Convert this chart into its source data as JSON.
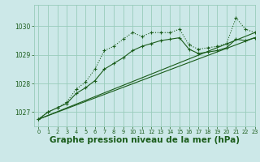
{
  "bg_color": "#cce8e8",
  "grid_color": "#99ccbb",
  "line_color": "#1a5c1a",
  "xlabel": "Graphe pression niveau de la mer (hPa)",
  "xlabel_fontsize": 7.5,
  "xlim": [
    -0.5,
    23
  ],
  "ylim": [
    1026.5,
    1030.75
  ],
  "yticks": [
    1027,
    1028,
    1029,
    1030
  ],
  "xticks": [
    0,
    1,
    2,
    3,
    4,
    5,
    6,
    7,
    8,
    9,
    10,
    11,
    12,
    13,
    14,
    15,
    16,
    17,
    18,
    19,
    20,
    21,
    22,
    23
  ],
  "line1_x": [
    0,
    1,
    2,
    3,
    4,
    5,
    6,
    7,
    8,
    9,
    10,
    11,
    12,
    13,
    14,
    15,
    16,
    17,
    18,
    19,
    20,
    21,
    22,
    23
  ],
  "line1_y": [
    1026.75,
    1027.0,
    1027.15,
    1027.35,
    1027.8,
    1028.05,
    1028.5,
    1029.15,
    1029.3,
    1029.55,
    1029.78,
    1029.65,
    1029.78,
    1029.78,
    1029.78,
    1029.9,
    1029.35,
    1029.2,
    1029.25,
    1029.3,
    1029.4,
    1030.3,
    1029.9,
    1029.78
  ],
  "line2_x": [
    0,
    1,
    2,
    3,
    4,
    5,
    6,
    7,
    8,
    9,
    10,
    11,
    12,
    13,
    14,
    15,
    16,
    17,
    18,
    19,
    20,
    21,
    22,
    23
  ],
  "line2_y": [
    1026.75,
    1027.0,
    1027.15,
    1027.3,
    1027.65,
    1027.85,
    1028.1,
    1028.5,
    1028.7,
    1028.9,
    1029.15,
    1029.3,
    1029.4,
    1029.5,
    1029.55,
    1029.6,
    1029.2,
    1029.05,
    1029.1,
    1029.15,
    1029.25,
    1029.55,
    1029.5,
    1029.6
  ],
  "line3_x": [
    0,
    23
  ],
  "line3_y": [
    1026.75,
    1029.78
  ],
  "line4_x": [
    0,
    23
  ],
  "line4_y": [
    1026.75,
    1029.6
  ]
}
